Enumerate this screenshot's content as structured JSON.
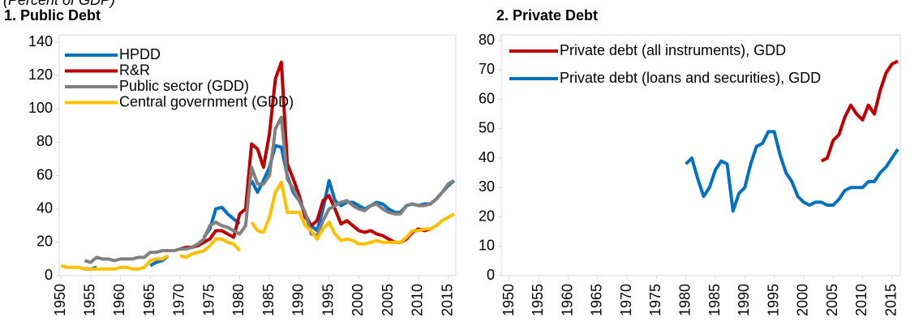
{
  "chart_data": [
    {
      "type": "line",
      "title": "1. Public Debt",
      "subtitle": "(Percent of GDP)",
      "legend": "upper left",
      "x": [
        1950,
        1951,
        1952,
        1953,
        1954,
        1955,
        1956,
        1957,
        1958,
        1959,
        1960,
        1961,
        1962,
        1963,
        1964,
        1965,
        1966,
        1967,
        1968,
        1969,
        1970,
        1971,
        1972,
        1973,
        1974,
        1975,
        1976,
        1977,
        1978,
        1979,
        1980,
        1981,
        1982,
        1983,
        1984,
        1985,
        1986,
        1987,
        1988,
        1989,
        1990,
        1991,
        1992,
        1993,
        1994,
        1995,
        1996,
        1997,
        1998,
        1999,
        2000,
        2001,
        2002,
        2003,
        2004,
        2005,
        2006,
        2007,
        2008,
        2009,
        2010,
        2011,
        2012,
        2013,
        2014,
        2015,
        2016
      ],
      "xlim": [
        1950,
        2016
      ],
      "ylim": [
        0,
        140
      ],
      "xticks": [
        1950,
        1955,
        1960,
        1965,
        1970,
        1975,
        1980,
        1985,
        1990,
        1995,
        2000,
        2005,
        2010,
        2015
      ],
      "yticks": [
        0,
        20,
        40,
        60,
        80,
        100,
        120,
        140
      ],
      "series": [
        {
          "name": "HPDD",
          "color": "#0070c0",
          "values": [
            null,
            null,
            null,
            null,
            4,
            4,
            5,
            null,
            null,
            null,
            null,
            null,
            null,
            null,
            null,
            6,
            8,
            9,
            12,
            null,
            null,
            null,
            null,
            null,
            23,
            28,
            40,
            41,
            37,
            34,
            31,
            null,
            57,
            50,
            57,
            65,
            78,
            77,
            60,
            50,
            45,
            37,
            30,
            27,
            40,
            57,
            45,
            42,
            44,
            44,
            42,
            40,
            42,
            44,
            43,
            40,
            38,
            38,
            42,
            43,
            42,
            43,
            43,
            46,
            50,
            54,
            57
          ]
        },
        {
          "name": "R&R",
          "color": "#c00000",
          "values": [
            null,
            null,
            null,
            null,
            null,
            null,
            null,
            null,
            null,
            null,
            null,
            null,
            null,
            null,
            null,
            null,
            null,
            null,
            null,
            null,
            16,
            17,
            17,
            18,
            20,
            22,
            27,
            27,
            25,
            23,
            37,
            40,
            79,
            76,
            65,
            85,
            118,
            128,
            67,
            58,
            48,
            35,
            30,
            33,
            45,
            48,
            40,
            31,
            33,
            30,
            27,
            26,
            27,
            25,
            24,
            22,
            20,
            20,
            22,
            26,
            28,
            27,
            28,
            null,
            null,
            null,
            null
          ]
        },
        {
          "name": "Public sector (GDD)",
          "color": "#808080",
          "values": [
            null,
            null,
            null,
            null,
            9,
            8,
            11,
            10,
            10,
            9,
            10,
            10,
            10,
            11,
            11,
            14,
            14,
            15,
            15,
            15,
            16,
            16,
            17,
            19,
            22,
            30,
            32,
            30,
            29,
            27,
            25,
            30,
            65,
            55,
            55,
            60,
            88,
            95,
            58,
            52,
            45,
            38,
            25,
            24,
            33,
            40,
            42,
            44,
            45,
            42,
            40,
            39,
            42,
            43,
            40,
            38,
            37,
            37,
            42,
            43,
            42,
            42,
            43,
            46,
            50,
            55,
            57
          ]
        },
        {
          "name": "Central government (GDD)",
          "color": "#ffc000",
          "values": [
            6,
            5,
            5,
            5,
            4,
            4,
            4,
            4,
            4,
            4,
            5,
            5,
            4,
            4,
            5,
            9,
            10,
            10,
            12,
            null,
            12,
            11,
            13,
            14,
            15,
            18,
            22,
            22,
            20,
            19,
            15,
            null,
            32,
            27,
            26,
            35,
            50,
            56,
            38,
            38,
            38,
            30,
            27,
            22,
            28,
            32,
            25,
            21,
            22,
            21,
            19,
            19,
            20,
            21,
            20,
            20,
            20,
            20,
            23,
            27,
            27,
            28,
            28,
            30,
            33,
            35,
            37
          ]
        }
      ]
    },
    {
      "type": "line",
      "title": "2. Private Debt",
      "legend": "upper left",
      "x": [
        1980,
        1981,
        1982,
        1983,
        1984,
        1985,
        1986,
        1987,
        1988,
        1989,
        1990,
        1991,
        1992,
        1993,
        1994,
        1995,
        1996,
        1997,
        1998,
        1999,
        2000,
        2001,
        2002,
        2003,
        2004,
        2005,
        2006,
        2007,
        2008,
        2009,
        2010,
        2011,
        2012,
        2013,
        2014,
        2015,
        2016
      ],
      "xlim": [
        1950,
        2016
      ],
      "ylim": [
        0,
        80
      ],
      "xticks": [
        1950,
        1955,
        1960,
        1965,
        1970,
        1975,
        1980,
        1985,
        1990,
        1995,
        2000,
        2005,
        2010,
        2015
      ],
      "yticks": [
        0,
        10,
        20,
        30,
        40,
        50,
        60,
        70,
        80
      ],
      "series": [
        {
          "name": "Private debt (all instruments), GDD",
          "color": "#c00000",
          "values": [
            null,
            null,
            null,
            null,
            null,
            null,
            null,
            null,
            null,
            null,
            null,
            null,
            null,
            null,
            null,
            null,
            null,
            null,
            null,
            null,
            null,
            null,
            null,
            39,
            40,
            46,
            48,
            54,
            58,
            55,
            53,
            58,
            55,
            63,
            69,
            72,
            73
          ]
        },
        {
          "name": "Private debt (loans and securities), GDD",
          "color": "#0070c0",
          "values": [
            38,
            40,
            33,
            27,
            30,
            36,
            39,
            38,
            22,
            28,
            30,
            38,
            44,
            45,
            49,
            49,
            41,
            35,
            32,
            27,
            25,
            24,
            25,
            25,
            24,
            24,
            26,
            29,
            30,
            30,
            30,
            32,
            32,
            35,
            37,
            40,
            43
          ]
        }
      ]
    }
  ]
}
